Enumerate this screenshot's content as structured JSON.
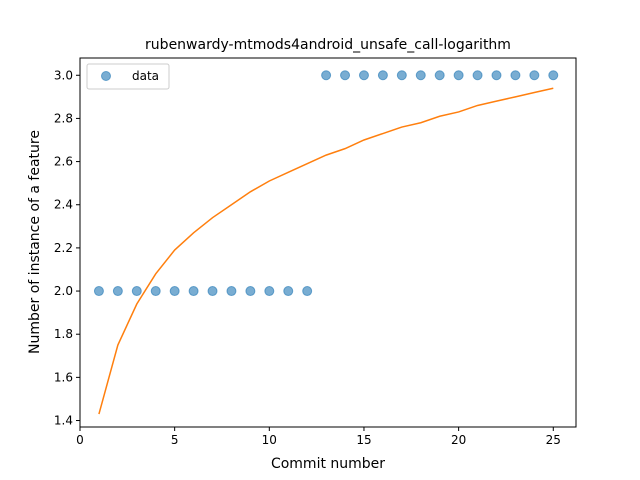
{
  "chart_data": {
    "type": "scatter",
    "title": "rubenwardy-mtmods4android_unsafe_call-logarithm",
    "xlabel": "Commit number",
    "ylabel": "Number of instance of a feature",
    "xlim": [
      0,
      26.2
    ],
    "ylim": [
      1.37,
      3.08
    ],
    "xticks": [
      "0",
      "5",
      "10",
      "15",
      "20",
      "25"
    ],
    "xtick_values": [
      0,
      5,
      10,
      15,
      20,
      25
    ],
    "yticks": [
      "1.4",
      "1.6",
      "1.8",
      "2.0",
      "2.2",
      "2.4",
      "2.6",
      "2.8",
      "3.0"
    ],
    "ytick_values": [
      1.4,
      1.6,
      1.8,
      2.0,
      2.2,
      2.4,
      2.6,
      2.8,
      3.0
    ],
    "legend": {
      "placement": "top-left",
      "entries": [
        "data"
      ]
    },
    "series": [
      {
        "name": "data",
        "kind": "scatter",
        "color": "#1f77b4",
        "x": [
          1,
          2,
          3,
          4,
          5,
          6,
          7,
          8,
          9,
          10,
          11,
          12,
          13,
          14,
          15,
          16,
          17,
          18,
          19,
          20,
          21,
          22,
          23,
          24,
          25
        ],
        "y": [
          2,
          2,
          2,
          2,
          2,
          2,
          2,
          2,
          2,
          2,
          2,
          2,
          3,
          3,
          3,
          3,
          3,
          3,
          3,
          3,
          3,
          3,
          3,
          3,
          3
        ]
      },
      {
        "kind": "line",
        "color": "#ff7f0e",
        "x": [
          1,
          2,
          3,
          4,
          5,
          6,
          7,
          8,
          9,
          10,
          11,
          12,
          13,
          14,
          15,
          16,
          17,
          18,
          19,
          20,
          21,
          22,
          23,
          24,
          25
        ],
        "y": [
          1.43,
          1.75,
          1.94,
          2.08,
          2.19,
          2.27,
          2.34,
          2.4,
          2.46,
          2.51,
          2.55,
          2.59,
          2.63,
          2.66,
          2.7,
          2.73,
          2.76,
          2.78,
          2.81,
          2.83,
          2.86,
          2.88,
          2.9,
          2.92,
          2.94
        ]
      }
    ],
    "grid": false
  }
}
